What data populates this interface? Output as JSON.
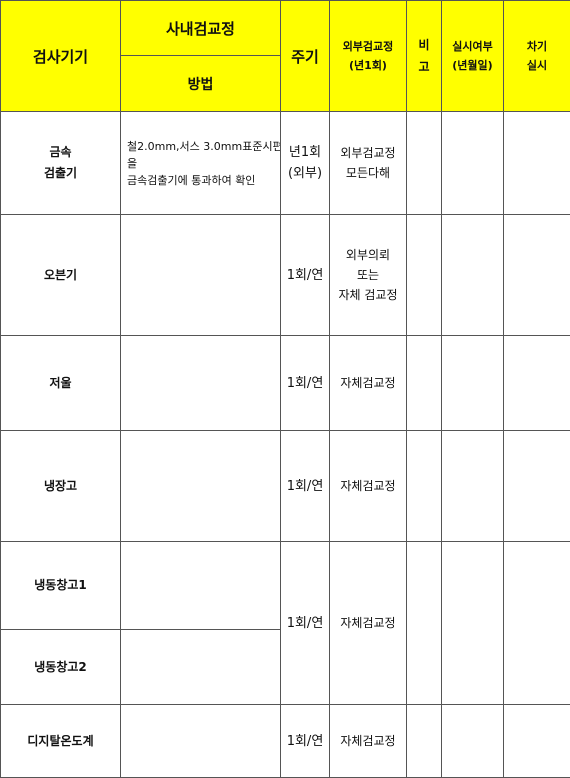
{
  "header": {
    "device": "검사기기",
    "internal": "사내검교정",
    "method": "방법",
    "cycle": "주기",
    "external": [
      "외부검교정",
      "(년1회)"
    ],
    "remark": [
      "비",
      "고"
    ],
    "done": [
      "실시여부",
      "(년월일)"
    ],
    "next": [
      "차기",
      "실시"
    ]
  },
  "rows": [
    {
      "device": [
        "금속",
        "검출기"
      ],
      "method": [
        "철2.0mm,서스  3.0mm표준시편",
        "을",
        "금속검출기에   통과하여  확인"
      ],
      "cycle": [
        "년1회",
        "(외부)"
      ],
      "external": [
        "외부검교정",
        "모든다해"
      ]
    },
    {
      "device": [
        "오븐기"
      ],
      "cycle": [
        "1회/연"
      ],
      "external": [
        "외부의뢰",
        "또는",
        "자체 검교정"
      ]
    },
    {
      "device": [
        "저울"
      ],
      "cycle": [
        "1회/연"
      ],
      "external": [
        "자체검교정"
      ]
    },
    {
      "device": [
        "냉장고"
      ],
      "cycle": [
        "1회/연"
      ],
      "external": [
        "자체검교정"
      ]
    },
    {
      "device": [
        "냉동창고1"
      ]
    },
    {
      "device": [
        "냉동창고2"
      ],
      "merged_cycle": "1회/연",
      "merged_external": "자체검교정"
    },
    {
      "device": [
        "디지탈온도계"
      ],
      "cycle": [
        "1회/연"
      ],
      "external": [
        "자체검교정"
      ]
    }
  ]
}
